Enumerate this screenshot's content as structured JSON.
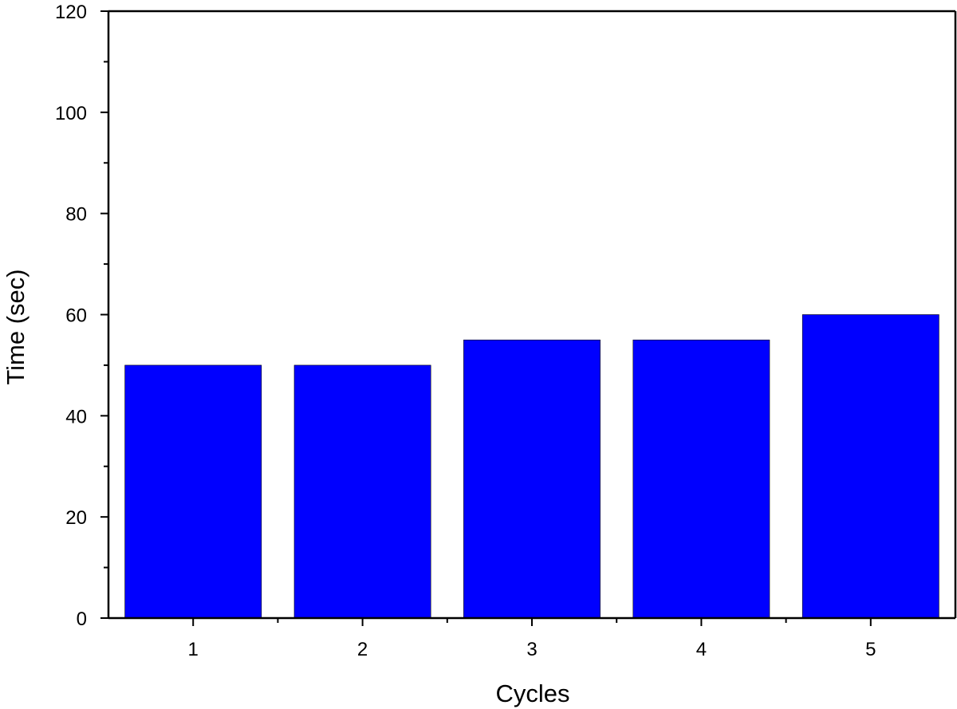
{
  "chart_data": {
    "type": "bar",
    "title": "",
    "xlabel": "Cycles",
    "ylabel": "Time (sec)",
    "categories": [
      "1",
      "2",
      "3",
      "4",
      "5"
    ],
    "values": [
      50,
      50,
      55,
      55,
      60
    ],
    "ylim": [
      0,
      120
    ],
    "yticks": [
      "0",
      "20",
      "40",
      "60",
      "80",
      "100",
      "120"
    ],
    "grid": false,
    "legend": "none",
    "bar_color": "#0000FF",
    "axis_color": "#000000"
  }
}
